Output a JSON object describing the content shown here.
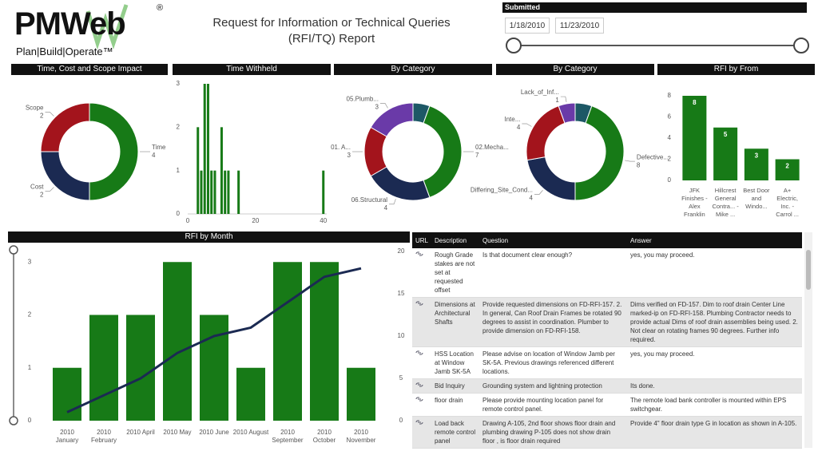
{
  "header": {
    "logo": "PMWeb",
    "registered": "®",
    "tagline": "Plan|Build|Operate™",
    "title": "Request for Information or Technical Queries (RFI/TQ) Report"
  },
  "filter": {
    "label": "Submitted",
    "start": "1/18/2010",
    "end": "11/23/2010"
  },
  "chart_data": [
    {
      "type": "donut",
      "title": "Time, Cost and Scope Impact",
      "categories": [
        "Time",
        "Cost",
        "Scope"
      ],
      "values": [
        4,
        2,
        2
      ],
      "colors": [
        "#177a17",
        "#1b2a52",
        "#a3141c"
      ]
    },
    {
      "type": "bar",
      "title": "Time Withheld",
      "x": [
        3,
        4,
        5,
        6,
        7,
        8,
        10,
        11,
        12,
        15,
        40
      ],
      "values": [
        2,
        1,
        3,
        3,
        1,
        1,
        2,
        1,
        1,
        1,
        1
      ],
      "color": "#177a17",
      "xlim": [
        0,
        41
      ],
      "xticks": [
        0,
        20,
        40
      ],
      "ylim": [
        0,
        3
      ],
      "yticks": [
        0,
        1,
        2,
        3
      ]
    },
    {
      "type": "donut",
      "title": "By Category",
      "categories": [
        null,
        "02.Mecha...",
        "06.Structural",
        "01. A...",
        "05.Plumb..."
      ],
      "values": [
        1,
        7,
        4,
        3,
        3
      ],
      "colors": [
        "#1d5866",
        "#177a17",
        "#1b2a52",
        "#a3141c",
        "#6a3aa8"
      ]
    },
    {
      "type": "donut",
      "title": "By Category",
      "categories": [
        null,
        "Defective...",
        "Differing_Site_Cond...",
        "Inte...",
        "Lack_of_Inf..."
      ],
      "values": [
        1,
        8,
        4,
        4,
        1
      ],
      "colors": [
        "#1d5866",
        "#177a17",
        "#1b2a52",
        "#a3141c",
        "#6a3aa8"
      ]
    },
    {
      "type": "bar",
      "title": "RFI by From",
      "categories": [
        "JFK Finishes - Alex Franklin",
        "Hillcrest General Contra... - Mike ...",
        "Best Door and Windo...",
        "A+ Electric, Inc. - Carrol ..."
      ],
      "values": [
        8,
        5,
        3,
        2
      ],
      "color": "#177a17",
      "ylim": [
        0,
        8
      ],
      "yticks": [
        0,
        2,
        4,
        6,
        8
      ]
    },
    {
      "type": "combo",
      "title": "RFI by Month",
      "categories": [
        "2010 January",
        "2010 February",
        "2010 April",
        "2010 May",
        "2010 June",
        "2010 August",
        "2010 September",
        "2010 October",
        "2010 November"
      ],
      "series": [
        {
          "kind": "bar",
          "color": "#177a17",
          "values": [
            1,
            2,
            2,
            3,
            2,
            1,
            3,
            3,
            1
          ]
        },
        {
          "kind": "line",
          "color": "#1b2a52",
          "axis": "y2",
          "values": [
            1,
            3,
            5,
            8,
            10,
            11,
            14,
            17,
            18
          ]
        }
      ],
      "ylim": [
        0,
        3.2
      ],
      "yticks": [
        0,
        1,
        2,
        3
      ],
      "y2lim": [
        0,
        20
      ],
      "y2ticks": [
        0,
        5,
        10,
        15,
        20
      ]
    }
  ],
  "table": {
    "columns": [
      "URL",
      "Description",
      "Question",
      "Answer"
    ],
    "rows": [
      [
        "",
        "Rough Grade stakes are not set at requested offset",
        "Is that document clear enough?",
        "yes, you may proceed."
      ],
      [
        "",
        "Dimensions at Architectural Shafts",
        "Provide requested dimensions on FD-RFI-157. 2. In general, Can Roof Drain Frames be rotated 90 degrees to assist in coordination. Plumber to provide dimension on FD-RFI-158.",
        "Dims verified on FD-157. Dim to roof drain Center Line marked-ip on FD-RFI-158. Plumbing Contractor needs to provide actual Dims of roof drain assemblies being used. 2. Not clear on rotating frames 90 degrees. Further info required."
      ],
      [
        "",
        "HSS Location at Window Jamb SK-5A",
        "Please advise on location of Window Jamb per SK-5A. Previous drawings referenced different locations.",
        "yes, you may proceed."
      ],
      [
        "",
        "Bid Inquiry",
        "Grounding system and lightning protection",
        "Its done."
      ],
      [
        "",
        "floor drain",
        "Please provide mounting location panel for remote control panel.",
        "The remote load bank controller is mounted within EPS switchgear."
      ],
      [
        "",
        "Load back remote control panel",
        "Drawing A-105, 2nd floor shows floor drain and plumbing drawing P-105 does not show drain floor , is floor drain required",
        "Provide 4\" floor drain type G in location as shown in A-105."
      ]
    ]
  }
}
